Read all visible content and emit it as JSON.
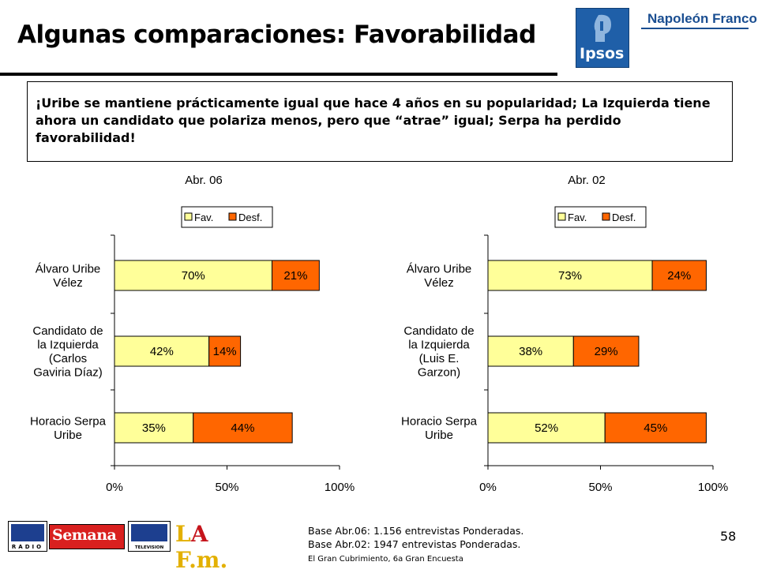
{
  "slide": {
    "title": "Algunas comparaciones: Favorabilidad",
    "callout": "¡Uribe se mantiene prácticamente igual que hace 4 años en su popularidad; La Izquierda tiene ahora un candidato que polariza menos, pero que “atrae” igual; Serpa ha perdido favorabilidad!",
    "base_line_1": "Base Abr.06: 1.156 entrevistas Ponderadas.",
    "base_line_2": "Base Abr.02: 1947 entrevistas Ponderadas.",
    "source": "El Gran Cubrimiento, 6a Gran Encuesta",
    "page_number": "58"
  },
  "logos": {
    "top_right": [
      "Ipsos",
      "Napoleón Franco"
    ],
    "bottom": [
      "RCN RADIO",
      "Semana",
      "RCN TELEVISION",
      "La F.m."
    ]
  },
  "colors": {
    "fav": "#ffff99",
    "desf": "#ff6600"
  },
  "chart_data": [
    {
      "type": "bar",
      "orientation": "horizontal",
      "stacked": true,
      "title": "Abr. 06",
      "categories": [
        [
          "Álvaro Uribe",
          "Vélez"
        ],
        [
          "Candidato de",
          "la Izquierda",
          "(Carlos",
          "Gaviria Díaz)"
        ],
        [
          "Horacio Serpa",
          "Uribe"
        ]
      ],
      "series": [
        {
          "name": "Fav.",
          "values": [
            70,
            42,
            35
          ],
          "labels": [
            "70%",
            "42%",
            "35%"
          ]
        },
        {
          "name": "Desf.",
          "values": [
            21,
            14,
            44
          ],
          "labels": [
            "21%",
            "14%",
            "44%"
          ]
        }
      ],
      "xlim": [
        0,
        100
      ],
      "xticks": [
        "0%",
        "50%",
        "100%"
      ],
      "legend": "top"
    },
    {
      "type": "bar",
      "orientation": "horizontal",
      "stacked": true,
      "title": "Abr. 02",
      "categories": [
        [
          "Álvaro Uribe",
          "Vélez"
        ],
        [
          "Candidato de",
          "la Izquierda",
          "(Luis E.",
          "Garzon)"
        ],
        [
          "Horacio Serpa",
          "Uribe"
        ]
      ],
      "series": [
        {
          "name": "Fav.",
          "values": [
            73,
            38,
            52
          ],
          "labels": [
            "73%",
            "38%",
            "52%"
          ]
        },
        {
          "name": "Desf.",
          "values": [
            24,
            29,
            45
          ],
          "labels": [
            "24%",
            "29%",
            "45%"
          ]
        }
      ],
      "xlim": [
        0,
        100
      ],
      "xticks": [
        "0%",
        "50%",
        "100%"
      ],
      "legend": "top"
    }
  ]
}
